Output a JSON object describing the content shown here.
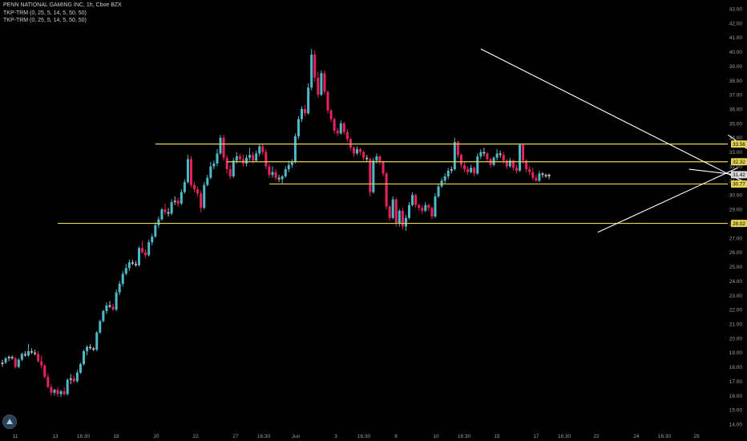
{
  "header": {
    "title": "PENN NATIONAL GAMING INC, 1h, Cboe BZX",
    "indicators": [
      "TKP-TRM (0, 25, 5, 14, 5, 50, 50)",
      "TKP-TRM (0, 25, 5, 14, 5, 50, 50)"
    ]
  },
  "colors": {
    "background": "#000000",
    "bull": "#4fb8c9",
    "bear": "#e8215f",
    "neutral": "#b9b9b9",
    "level_line": "#e5d356",
    "trendline": "#ffffff",
    "axis_text": "#9e9e9e"
  },
  "chart_data": {
    "type": "candlestick",
    "title": "PENN NATIONAL GAMING INC, 1h, Cboe BZX",
    "ylim": [
      13.5,
      43.5
    ],
    "y_ticks": [
      "14.00",
      "15.00",
      "16.00",
      "17.00",
      "18.00",
      "19.00",
      "20.00",
      "21.00",
      "22.00",
      "23.00",
      "24.00",
      "25.00",
      "26.00",
      "27.00",
      "28.00",
      "29.00",
      "30.00",
      "31.00",
      "32.00",
      "33.00",
      "34.00",
      "35.00",
      "36.00",
      "37.00",
      "38.00",
      "39.00",
      "40.00",
      "41.00",
      "42.00",
      "43.00"
    ],
    "x_ticks": [
      "11",
      "13",
      "16:30",
      "18",
      "20",
      "22",
      "27",
      "16:30",
      "Jun",
      "3",
      "16:30",
      "8",
      "10",
      "16:30",
      "15",
      "17",
      "16:30",
      "22",
      "24",
      "16:30",
      "29"
    ],
    "price_labels": [
      {
        "text": "33.56",
        "value": 33.56,
        "style": "level"
      },
      {
        "text": "32.32",
        "value": 32.32,
        "style": "level"
      },
      {
        "text": "31.42",
        "value": 31.42,
        "style": "last"
      },
      {
        "text": "30.77",
        "value": 30.77,
        "style": "level"
      },
      {
        "text": "28.02",
        "value": 28.02,
        "style": "level"
      }
    ],
    "horizontal_levels": [
      {
        "value": 33.56,
        "from_bar": 47
      },
      {
        "value": 32.32,
        "from_bar": 69
      },
      {
        "value": 30.77,
        "from_bar": 82
      },
      {
        "value": 28.02,
        "from_bar": 17
      }
    ],
    "trendlines": [
      {
        "from": [
          147,
          40.2
        ],
        "to": [
          228,
          30.9
        ]
      },
      {
        "from": [
          183,
          27.4
        ],
        "to": [
          226,
          31.9
        ]
      },
      {
        "from": [
          211,
          31.8
        ],
        "to": [
          241,
          31.0
        ]
      },
      {
        "from": [
          223,
          34.2
        ],
        "to": [
          241,
          31.2
        ]
      }
    ],
    "bars": [
      [
        18.2,
        18.5,
        18.0,
        18.3
      ],
      [
        18.3,
        18.7,
        18.2,
        18.6
      ],
      [
        18.6,
        18.8,
        18.4,
        18.7
      ],
      [
        18.7,
        18.8,
        18.5,
        18.6
      ],
      [
        18.6,
        18.7,
        17.9,
        18.0
      ],
      [
        18.0,
        18.6,
        17.9,
        18.5
      ],
      [
        18.5,
        19.0,
        18.4,
        18.9
      ],
      [
        18.9,
        19.1,
        18.7,
        18.8
      ],
      [
        18.8,
        19.6,
        18.7,
        19.1
      ],
      [
        19.1,
        19.3,
        18.9,
        19.0
      ],
      [
        19.0,
        19.2,
        18.8,
        18.9
      ],
      [
        18.9,
        19.1,
        18.3,
        18.4
      ],
      [
        18.4,
        18.8,
        17.9,
        18.1
      ],
      [
        18.1,
        18.2,
        17.2,
        17.3
      ],
      [
        17.3,
        17.5,
        16.5,
        16.6
      ],
      [
        16.6,
        16.8,
        16.0,
        16.2
      ],
      [
        16.2,
        16.5,
        16.0,
        16.4
      ],
      [
        16.4,
        16.6,
        15.9,
        16.1
      ],
      [
        16.1,
        16.4,
        15.9,
        16.3
      ],
      [
        16.3,
        16.6,
        16.0,
        16.1
      ],
      [
        16.1,
        17.2,
        16.0,
        17.1
      ],
      [
        17.1,
        17.5,
        16.8,
        17.2
      ],
      [
        17.2,
        17.4,
        16.9,
        17.0
      ],
      [
        17.0,
        17.8,
        16.9,
        17.6
      ],
      [
        17.6,
        18.3,
        17.5,
        18.2
      ],
      [
        18.2,
        19.2,
        18.1,
        19.1
      ],
      [
        19.1,
        19.5,
        18.8,
        19.4
      ],
      [
        19.4,
        19.6,
        19.2,
        19.3
      ],
      [
        19.3,
        19.4,
        19.1,
        19.2
      ],
      [
        19.2,
        20.5,
        19.1,
        20.4
      ],
      [
        20.4,
        21.3,
        20.3,
        21.2
      ],
      [
        21.2,
        22.0,
        21.1,
        21.9
      ],
      [
        21.9,
        22.5,
        21.7,
        22.3
      ],
      [
        22.3,
        22.6,
        22.1,
        22.2
      ],
      [
        22.2,
        22.4,
        21.9,
        22.0
      ],
      [
        22.0,
        23.4,
        21.9,
        23.2
      ],
      [
        23.2,
        24.0,
        23.0,
        23.8
      ],
      [
        23.8,
        24.7,
        23.6,
        24.5
      ],
      [
        24.5,
        25.2,
        24.4,
        24.9
      ],
      [
        24.9,
        25.5,
        24.7,
        25.3
      ],
      [
        25.3,
        25.5,
        25.1,
        25.2
      ],
      [
        25.2,
        25.4,
        25.0,
        25.1
      ],
      [
        25.1,
        26.4,
        25.0,
        26.3
      ],
      [
        26.3,
        26.8,
        25.9,
        26.0
      ],
      [
        26.0,
        26.2,
        25.6,
        25.8
      ],
      [
        25.8,
        26.9,
        25.7,
        26.7
      ],
      [
        26.7,
        27.3,
        26.5,
        27.1
      ],
      [
        27.1,
        28.1,
        27.0,
        27.9
      ],
      [
        27.9,
        28.5,
        27.7,
        28.3
      ],
      [
        28.3,
        29.1,
        28.2,
        29.0
      ],
      [
        29.0,
        29.4,
        28.6,
        28.8
      ],
      [
        28.8,
        29.1,
        28.5,
        28.7
      ],
      [
        28.7,
        29.7,
        28.6,
        29.5
      ],
      [
        29.5,
        29.9,
        29.3,
        29.6
      ],
      [
        29.6,
        29.8,
        29.2,
        29.4
      ],
      [
        29.4,
        30.4,
        29.3,
        30.2
      ],
      [
        30.2,
        31.1,
        30.1,
        30.9
      ],
      [
        30.9,
        32.8,
        30.8,
        32.5
      ],
      [
        32.5,
        32.7,
        30.5,
        30.7
      ],
      [
        30.7,
        30.9,
        30.2,
        30.4
      ],
      [
        30.4,
        30.6,
        29.9,
        30.1
      ],
      [
        30.1,
        30.3,
        28.8,
        29.1
      ],
      [
        29.1,
        30.9,
        29.0,
        30.7
      ],
      [
        30.7,
        31.4,
        30.6,
        31.2
      ],
      [
        31.2,
        32.3,
        31.1,
        32.0
      ],
      [
        32.0,
        32.4,
        31.8,
        32.2
      ],
      [
        32.2,
        33.2,
        32.0,
        32.9
      ],
      [
        32.9,
        34.2,
        32.8,
        34.0
      ],
      [
        34.0,
        34.2,
        32.4,
        32.6
      ],
      [
        32.6,
        32.8,
        31.5,
        31.8
      ],
      [
        31.8,
        32.1,
        31.1,
        31.3
      ],
      [
        31.3,
        32.6,
        31.2,
        32.4
      ],
      [
        32.4,
        33.0,
        32.2,
        32.7
      ],
      [
        32.7,
        32.9,
        32.3,
        32.5
      ],
      [
        32.5,
        32.8,
        32.0,
        32.2
      ],
      [
        32.2,
        32.8,
        32.0,
        32.6
      ],
      [
        32.6,
        33.3,
        32.4,
        32.8
      ],
      [
        32.8,
        33.0,
        32.2,
        32.4
      ],
      [
        32.4,
        33.1,
        32.3,
        32.9
      ],
      [
        32.9,
        33.6,
        32.7,
        33.4
      ],
      [
        33.4,
        33.6,
        32.8,
        33.0
      ],
      [
        33.0,
        33.2,
        31.8,
        32.0
      ],
      [
        32.0,
        32.2,
        31.2,
        31.4
      ],
      [
        31.4,
        32.0,
        31.2,
        31.6
      ],
      [
        31.6,
        31.8,
        31.0,
        31.2
      ],
      [
        31.2,
        31.4,
        30.9,
        31.1
      ],
      [
        31.1,
        31.4,
        30.8,
        31.3
      ],
      [
        31.3,
        32.0,
        31.2,
        31.8
      ],
      [
        31.8,
        32.4,
        31.6,
        32.1
      ],
      [
        32.1,
        32.5,
        31.9,
        32.3
      ],
      [
        32.3,
        34.3,
        32.2,
        34.1
      ],
      [
        34.1,
        35.5,
        33.9,
        35.3
      ],
      [
        35.3,
        36.2,
        35.1,
        36.0
      ],
      [
        36.0,
        36.3,
        35.5,
        35.7
      ],
      [
        35.7,
        37.8,
        35.6,
        37.5
      ],
      [
        37.5,
        40.2,
        37.3,
        39.8
      ],
      [
        39.8,
        40.1,
        37.9,
        38.2
      ],
      [
        38.2,
        38.6,
        36.8,
        37.0
      ],
      [
        37.0,
        38.7,
        36.9,
        38.5
      ],
      [
        38.5,
        38.7,
        37.0,
        37.2
      ],
      [
        37.2,
        37.3,
        35.7,
        35.9
      ],
      [
        35.9,
        36.0,
        35.1,
        35.3
      ],
      [
        35.3,
        35.4,
        34.3,
        34.5
      ],
      [
        34.5,
        34.7,
        34.1,
        34.3
      ],
      [
        34.3,
        35.2,
        34.2,
        35.0
      ],
      [
        35.0,
        35.1,
        34.2,
        34.4
      ],
      [
        34.4,
        34.6,
        33.7,
        33.9
      ],
      [
        33.9,
        34.0,
        33.1,
        33.3
      ],
      [
        33.3,
        33.4,
        32.7,
        32.9
      ],
      [
        32.9,
        33.4,
        32.8,
        33.2
      ],
      [
        33.2,
        33.3,
        32.8,
        33.0
      ],
      [
        33.0,
        33.1,
        32.4,
        32.6
      ],
      [
        32.6,
        32.8,
        32.3,
        32.5
      ],
      [
        32.5,
        32.6,
        29.9,
        30.2
      ],
      [
        30.2,
        32.6,
        30.1,
        32.4
      ],
      [
        32.4,
        32.9,
        32.2,
        32.7
      ],
      [
        32.7,
        32.8,
        32.1,
        32.3
      ],
      [
        32.3,
        32.4,
        31.3,
        31.5
      ],
      [
        31.5,
        31.6,
        29.0,
        29.2
      ],
      [
        29.2,
        29.3,
        28.2,
        28.4
      ],
      [
        28.4,
        29.9,
        28.3,
        29.7
      ],
      [
        29.7,
        29.8,
        27.8,
        28.0
      ],
      [
        28.0,
        29.0,
        27.8,
        28.9
      ],
      [
        28.9,
        29.1,
        27.6,
        27.8
      ],
      [
        27.8,
        28.6,
        27.5,
        28.4
      ],
      [
        28.4,
        29.5,
        28.3,
        29.3
      ],
      [
        29.3,
        30.2,
        29.2,
        30.0
      ],
      [
        30.0,
        30.1,
        29.1,
        29.3
      ],
      [
        29.3,
        29.4,
        28.9,
        29.1
      ],
      [
        29.1,
        29.3,
        28.7,
        28.9
      ],
      [
        28.9,
        29.5,
        28.8,
        29.3
      ],
      [
        29.3,
        29.4,
        28.9,
        29.1
      ],
      [
        29.1,
        29.2,
        28.3,
        28.5
      ],
      [
        28.5,
        30.1,
        28.4,
        29.9
      ],
      [
        29.9,
        30.8,
        29.8,
        30.6
      ],
      [
        30.6,
        31.2,
        30.5,
        31.0
      ],
      [
        31.0,
        31.5,
        30.8,
        31.3
      ],
      [
        31.3,
        31.9,
        31.1,
        31.7
      ],
      [
        31.7,
        32.0,
        31.5,
        31.8
      ],
      [
        31.8,
        34.0,
        31.7,
        33.7
      ],
      [
        33.7,
        33.8,
        32.6,
        32.8
      ],
      [
        32.8,
        32.9,
        31.9,
        32.1
      ],
      [
        32.1,
        32.3,
        31.6,
        31.8
      ],
      [
        31.8,
        32.0,
        31.4,
        31.6
      ],
      [
        31.6,
        32.1,
        31.5,
        31.9
      ],
      [
        31.9,
        32.0,
        31.3,
        31.5
      ],
      [
        31.5,
        32.9,
        31.4,
        32.7
      ],
      [
        32.7,
        33.2,
        32.5,
        33.0
      ],
      [
        33.0,
        33.3,
        32.7,
        32.9
      ],
      [
        32.9,
        33.0,
        32.3,
        32.5
      ],
      [
        32.5,
        32.6,
        31.9,
        32.1
      ],
      [
        32.1,
        32.7,
        32.0,
        32.6
      ],
      [
        32.6,
        33.2,
        32.4,
        32.9
      ],
      [
        32.9,
        33.1,
        32.6,
        32.8
      ],
      [
        32.8,
        33.0,
        32.2,
        32.4
      ],
      [
        32.4,
        32.5,
        31.8,
        32.0
      ],
      [
        32.0,
        32.6,
        31.9,
        32.4
      ],
      [
        32.4,
        32.5,
        31.7,
        31.9
      ],
      [
        31.9,
        32.1,
        31.5,
        31.7
      ],
      [
        31.7,
        33.6,
        31.6,
        33.5
      ],
      [
        33.5,
        33.6,
        32.2,
        32.4
      ],
      [
        32.4,
        32.5,
        31.6,
        31.8
      ],
      [
        31.8,
        32.0,
        31.4,
        31.6
      ],
      [
        31.6,
        31.9,
        31.0,
        31.2
      ],
      [
        31.2,
        31.4,
        30.9,
        31.0
      ],
      [
        31.0,
        31.7,
        30.9,
        31.5
      ],
      [
        31.5,
        31.6,
        31.2,
        31.4
      ],
      [
        31.4,
        31.5,
        31.2,
        31.3
      ],
      [
        31.3,
        31.5,
        31.1,
        31.42
      ]
    ]
  }
}
